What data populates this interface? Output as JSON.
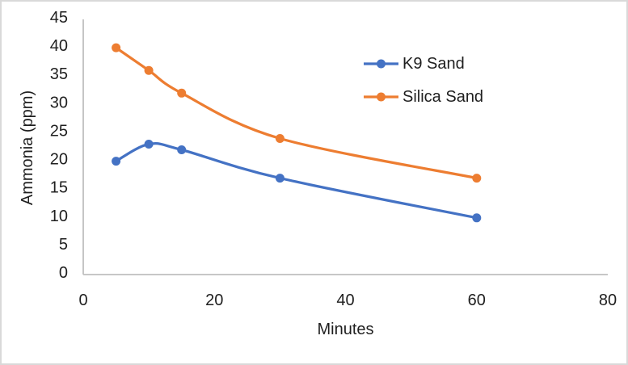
{
  "chart_data": {
    "type": "line",
    "title": "",
    "xlabel": "Minutes",
    "ylabel": "Ammonia (ppm)",
    "x": [
      5,
      10,
      15,
      30,
      60
    ],
    "series": [
      {
        "name": "K9 Sand",
        "color": "#4472C4",
        "values": [
          20,
          23,
          22,
          17,
          10
        ]
      },
      {
        "name": "Silica Sand",
        "color": "#ED7D31",
        "values": [
          40,
          36,
          32,
          24,
          17
        ]
      }
    ],
    "xlim": [
      0,
      80
    ],
    "ylim": [
      0,
      45
    ],
    "x_ticks": [
      0,
      20,
      40,
      60,
      80
    ],
    "y_ticks": [
      0,
      5,
      10,
      15,
      20,
      25,
      30,
      35,
      40,
      45
    ],
    "grid": false,
    "smooth_lines": true,
    "markers": true,
    "legend_position": "inside-upper-right"
  },
  "colors": {
    "background": "#FFFFFF",
    "frame_border": "#D9D9D9",
    "axis_line": "#BFBFBF",
    "text": "#1F1F1F"
  }
}
